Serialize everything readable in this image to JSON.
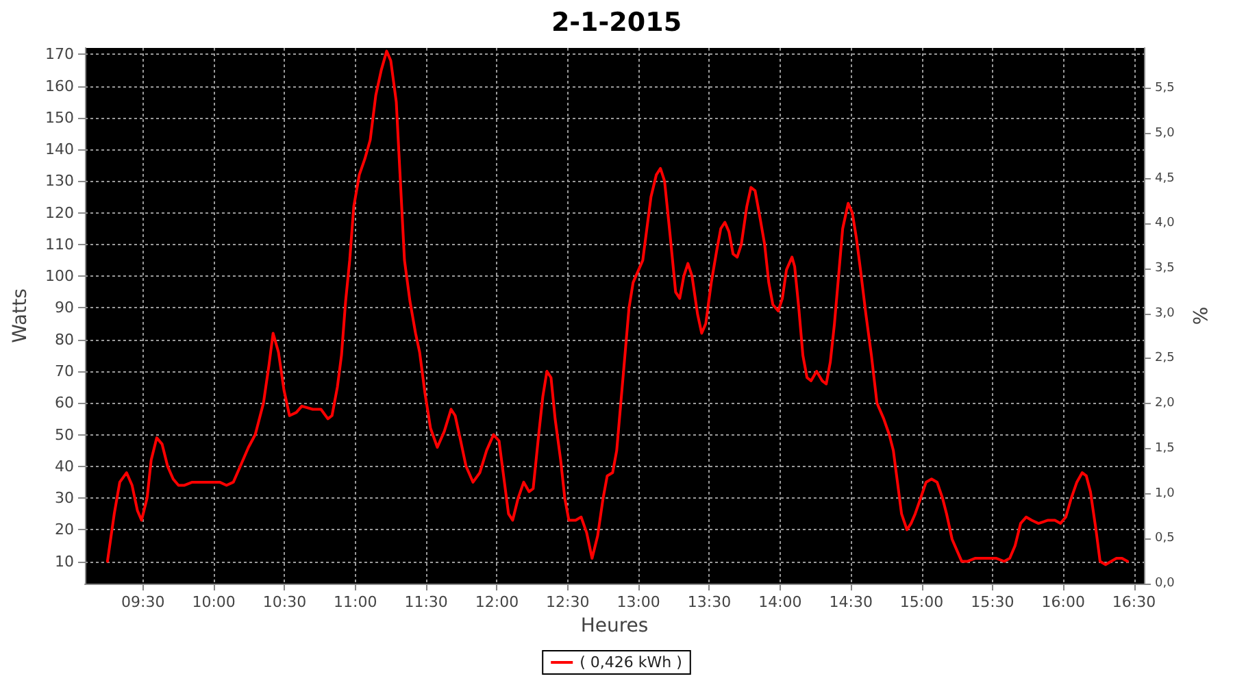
{
  "chart_data": {
    "type": "line",
    "title": "2-1-2015",
    "xlabel": "Heures",
    "ylabel": "Watts",
    "y2label": "%",
    "xlim": [
      9.09,
      16.57
    ],
    "xticks": [
      {
        "value": 9.5,
        "label": "09:30"
      },
      {
        "value": 10,
        "label": "10:00"
      },
      {
        "value": 10.5,
        "label": "10:30"
      },
      {
        "value": 11,
        "label": "11:00"
      },
      {
        "value": 11.5,
        "label": "11:30"
      },
      {
        "value": 12,
        "label": "12:00"
      },
      {
        "value": 12.5,
        "label": "12:30"
      },
      {
        "value": 13,
        "label": "13:00"
      },
      {
        "value": 13.5,
        "label": "13:30"
      },
      {
        "value": 14,
        "label": "14:00"
      },
      {
        "value": 14.5,
        "label": "14:30"
      },
      {
        "value": 15,
        "label": "15:00"
      },
      {
        "value": 15.5,
        "label": "15:30"
      },
      {
        "value": 16,
        "label": "16:00"
      },
      {
        "value": 16.5,
        "label": "16:30"
      }
    ],
    "ylim": [
      3,
      172
    ],
    "yticks": [
      10,
      20,
      30,
      40,
      50,
      60,
      70,
      80,
      90,
      100,
      110,
      120,
      130,
      140,
      150,
      160,
      170
    ],
    "y2lim": [
      0,
      5.95
    ],
    "y2ticks": [
      {
        "value": 0,
        "label": "0,0"
      },
      {
        "value": 0.5,
        "label": "0,5"
      },
      {
        "value": 1,
        "label": "1,0"
      },
      {
        "value": 1.5,
        "label": "1,5"
      },
      {
        "value": 2,
        "label": "2,0"
      },
      {
        "value": 2.5,
        "label": "2,5"
      },
      {
        "value": 3,
        "label": "3,0"
      },
      {
        "value": 3.5,
        "label": "3,5"
      },
      {
        "value": 4,
        "label": "4,0"
      },
      {
        "value": 4.5,
        "label": "4,5"
      },
      {
        "value": 5,
        "label": "5,0"
      },
      {
        "value": 5.5,
        "label": "5,5"
      }
    ],
    "grid": true,
    "legend": "bottom",
    "marker": "none",
    "line_style": "solid",
    "series": [
      {
        "name": "( 0,426 kWh )",
        "color": "#ff0000",
        "x": [
          9.249,
          9.297,
          9.336,
          9.384,
          9.423,
          9.461,
          9.49,
          9.529,
          9.558,
          9.597,
          9.635,
          9.674,
          9.713,
          9.751,
          9.79,
          9.848,
          9.945,
          10.042,
          10.09,
          10.138,
          10.187,
          10.245,
          10.293,
          10.351,
          10.39,
          10.419,
          10.457,
          10.496,
          10.535,
          10.583,
          10.622,
          10.699,
          10.757,
          10.806,
          10.835,
          10.873,
          10.902,
          10.931,
          10.96,
          10.989,
          11.028,
          11.067,
          11.105,
          11.144,
          11.183,
          11.221,
          11.25,
          11.289,
          11.318,
          11.347,
          11.386,
          11.425,
          11.454,
          11.492,
          11.531,
          11.579,
          11.628,
          11.676,
          11.705,
          11.744,
          11.782,
          11.831,
          11.879,
          11.927,
          11.976,
          12.015,
          12.044,
          12.082,
          12.111,
          12.15,
          12.189,
          12.227,
          12.256,
          12.295,
          12.324,
          12.353,
          12.382,
          12.411,
          12.45,
          12.479,
          12.508,
          12.556,
          12.595,
          12.634,
          12.672,
          12.711,
          12.75,
          12.779,
          12.817,
          12.846,
          12.875,
          12.904,
          12.933,
          12.962,
          13.001,
          13.03,
          13.059,
          13.088,
          13.126,
          13.155,
          13.184,
          13.223,
          13.262,
          13.291,
          13.32,
          13.349,
          13.378,
          13.417,
          13.446,
          13.475,
          13.514,
          13.552,
          13.581,
          13.61,
          13.639,
          13.668,
          13.697,
          13.726,
          13.765,
          13.794,
          13.823,
          13.852,
          13.891,
          13.92,
          13.949,
          13.987,
          14.016,
          14.045,
          14.084,
          14.103,
          14.132,
          14.161,
          14.19,
          14.219,
          14.258,
          14.297,
          14.326,
          14.355,
          14.384,
          14.413,
          14.442,
          14.481,
          14.51,
          14.539,
          14.568,
          14.606,
          14.645,
          14.684,
          14.732,
          14.771,
          14.8,
          14.829,
          14.858,
          14.896,
          14.925,
          14.954,
          14.993,
          15.031,
          15.07,
          15.109,
          15.147,
          15.176,
          15.215,
          15.244,
          15.283,
          15.321,
          15.38,
          15.457,
          15.525,
          15.583,
          15.622,
          15.66,
          15.699,
          15.738,
          15.777,
          15.825,
          15.893,
          15.941,
          15.98,
          16.018,
          16.057,
          16.096,
          16.134,
          16.163,
          16.192,
          16.231,
          16.26,
          16.299,
          16.338,
          16.376,
          16.415,
          16.454
        ],
        "values": [
          10,
          25,
          35,
          38,
          34,
          26,
          23,
          30,
          42,
          49,
          47,
          40,
          36,
          34,
          34,
          35,
          35,
          35,
          34,
          35,
          40,
          46,
          50,
          60,
          72,
          82,
          76,
          64,
          56,
          57,
          59,
          58,
          58,
          55,
          56,
          65,
          75,
          92,
          105,
          122,
          132,
          137,
          143,
          157,
          165,
          171,
          168,
          155,
          130,
          105,
          92,
          82,
          76,
          63,
          52,
          46,
          51,
          58,
          56,
          48,
          40,
          35,
          38,
          45,
          50,
          48,
          38,
          25,
          23,
          30,
          35,
          32,
          33,
          50,
          62,
          70,
          68,
          55,
          42,
          30,
          23,
          23,
          24,
          19,
          11,
          18,
          30,
          37,
          38,
          45,
          60,
          75,
          90,
          98,
          102,
          105,
          115,
          125,
          132,
          134,
          130,
          113,
          95,
          93,
          100,
          104,
          100,
          88,
          82,
          85,
          98,
          108,
          115,
          117,
          114,
          107,
          106,
          110,
          122,
          128,
          127,
          120,
          110,
          98,
          91,
          89,
          93,
          102,
          106,
          103,
          90,
          75,
          68,
          67,
          70,
          67,
          66,
          73,
          85,
          100,
          115,
          123,
          120,
          112,
          102,
          88,
          75,
          60,
          55,
          50,
          45,
          35,
          25,
          20,
          22,
          25,
          30,
          35,
          36,
          35,
          30,
          25,
          17,
          14,
          10,
          10,
          11,
          11,
          11,
          10,
          11,
          15,
          22,
          24,
          23,
          22,
          23,
          23,
          22,
          24,
          30,
          35,
          38,
          37,
          32,
          20,
          10,
          9,
          10,
          11,
          11,
          10
        ]
      }
    ]
  }
}
